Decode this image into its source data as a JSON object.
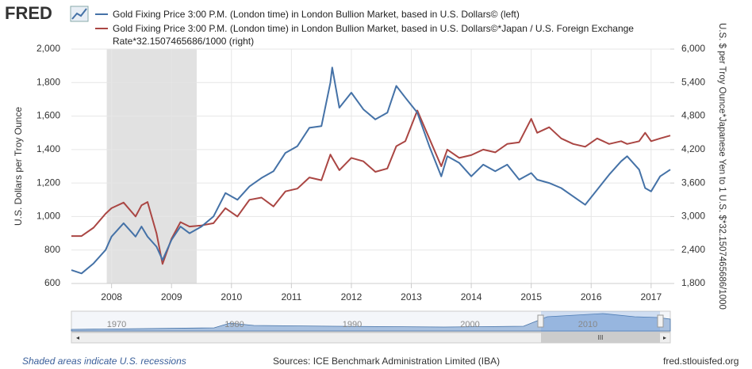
{
  "logo": "FRED",
  "chart_data": {
    "type": "line",
    "y_label": "U.S. Dollars per Troy Ounce",
    "y2_label": "U.S. $ per Troy Ounce*Japanese Yen to 1 U.S. $*32.1507465686/1000",
    "xlim": [
      2007.33,
      2017.32
    ],
    "xticks": [
      2008,
      2009,
      2010,
      2011,
      2012,
      2013,
      2014,
      2015,
      2016,
      2017
    ],
    "ylim": [
      600,
      2000
    ],
    "yticks": [
      600,
      800,
      {
        "value": 1000,
        "label": "1,000"
      },
      {
        "value": 1200,
        "label": "1,200"
      },
      {
        "value": 1400,
        "label": "1,400"
      },
      {
        "value": 1600,
        "label": "1,600"
      },
      {
        "value": 1800,
        "label": "1,800"
      },
      {
        "value": 2000,
        "label": "2,000"
      }
    ],
    "y2lim": [
      1800,
      6000
    ],
    "y2ticks": [
      {
        "value": 1800,
        "label": "1,800"
      },
      {
        "value": 2400,
        "label": "2,400"
      },
      {
        "value": 3000,
        "label": "3,000"
      },
      {
        "value": 3600,
        "label": "3,600"
      },
      {
        "value": 4200,
        "label": "4,200"
      },
      {
        "value": 4800,
        "label": "4,800"
      },
      {
        "value": 5400,
        "label": "5,400"
      },
      {
        "value": 6000,
        "label": "6,000"
      }
    ],
    "grid": true,
    "recessions": [
      [
        2007.92,
        2009.42
      ]
    ],
    "x": [
      2007.33,
      2007.5,
      2007.7,
      2007.9,
      2008.0,
      2008.2,
      2008.4,
      2008.5,
      2008.6,
      2008.75,
      2008.85,
      2009.0,
      2009.15,
      2009.3,
      2009.5,
      2009.7,
      2009.9,
      2010.1,
      2010.3,
      2010.5,
      2010.7,
      2010.9,
      2011.1,
      2011.3,
      2011.5,
      2011.65,
      2011.68,
      2011.8,
      2012.0,
      2012.2,
      2012.4,
      2012.6,
      2012.75,
      2012.9,
      2013.1,
      2013.3,
      2013.5,
      2013.6,
      2013.8,
      2014.0,
      2014.2,
      2014.4,
      2014.6,
      2014.8,
      2015.0,
      2015.1,
      2015.3,
      2015.5,
      2015.7,
      2015.9,
      2016.1,
      2016.3,
      2016.5,
      2016.6,
      2016.8,
      2016.9,
      2017.0,
      2017.15,
      2017.32
    ],
    "series": [
      {
        "name": "Gold Fixing Price 3:00 P.M. (London time) in London Bullion Market, based in U.S. Dollars© (left)",
        "color": "#4572a7",
        "axis": "y",
        "values": [
          680,
          660,
          720,
          800,
          880,
          960,
          880,
          940,
          880,
          820,
          740,
          860,
          940,
          900,
          940,
          1000,
          1140,
          1100,
          1180,
          1230,
          1270,
          1380,
          1420,
          1530,
          1540,
          1800,
          1890,
          1650,
          1740,
          1640,
          1580,
          1620,
          1780,
          1710,
          1620,
          1420,
          1240,
          1360,
          1320,
          1240,
          1310,
          1270,
          1310,
          1220,
          1260,
          1220,
          1200,
          1170,
          1120,
          1070,
          1160,
          1250,
          1330,
          1360,
          1280,
          1170,
          1150,
          1240,
          1280
        ]
      },
      {
        "name": "Gold Fixing Price 3:00 P.M. (London time) in London Bullion Market, based in U.S. Dollars©*Japan / U.S. Foreign Exchange Rate*32.1507465686/1000 (right)",
        "color": "#aa4643",
        "axis": "y2",
        "values": [
          2650,
          2650,
          2800,
          3050,
          3150,
          3250,
          3000,
          3200,
          3260,
          2700,
          2150,
          2600,
          2900,
          2820,
          2840,
          2880,
          3150,
          3000,
          3300,
          3340,
          3180,
          3450,
          3500,
          3700,
          3650,
          4110,
          4050,
          3830,
          4050,
          3990,
          3800,
          3860,
          4260,
          4350,
          4900,
          4400,
          3900,
          4200,
          4050,
          4100,
          4200,
          4150,
          4300,
          4330,
          4750,
          4500,
          4600,
          4400,
          4300,
          4250,
          4400,
          4300,
          4350,
          4300,
          4350,
          4500,
          4350,
          4400,
          4450
        ]
      }
    ]
  },
  "navigator": {
    "labels": [
      "1970",
      "1980",
      "1990",
      "2000",
      "2010"
    ]
  },
  "footer": {
    "left": "Shaded areas indicate U.S. recessions",
    "center": "Sources: ICE Benchmark Administration Limited (IBA)",
    "right": "fred.stlouisfed.org"
  }
}
